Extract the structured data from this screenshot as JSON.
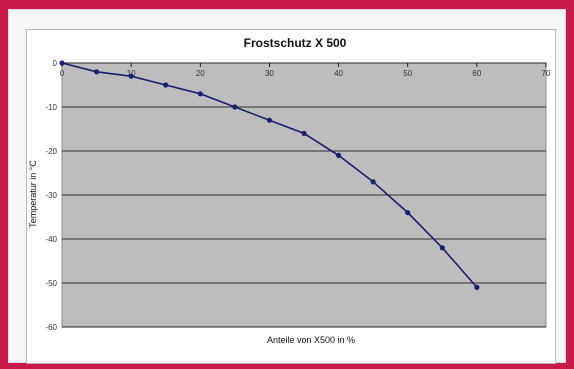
{
  "colors": {
    "border": "#c8194a",
    "plot_bg": "#bdbdbd",
    "line": "#1a1f6e",
    "grid": "#000000"
  },
  "chart_data": {
    "type": "line",
    "title": "Frostschutz X 500",
    "xlabel": "Anteile von X500 in %",
    "ylabel": "Temperatur in °C",
    "xlim": [
      0,
      70
    ],
    "ylim": [
      -60,
      0
    ],
    "xticks": [
      0,
      10,
      20,
      30,
      40,
      50,
      60,
      70
    ],
    "yticks": [
      0,
      -10,
      -20,
      -30,
      -40,
      -50,
      -60
    ],
    "grid": "horizontal",
    "legend": "none",
    "series": [
      {
        "x": [
          0,
          5,
          10,
          15,
          20,
          25,
          30,
          35,
          40,
          45,
          50,
          55,
          60
        ],
        "y": [
          0,
          -2,
          -3,
          -5,
          -7,
          -10,
          -13,
          -16,
          -21,
          -27,
          -34,
          -42,
          -51
        ]
      }
    ]
  }
}
